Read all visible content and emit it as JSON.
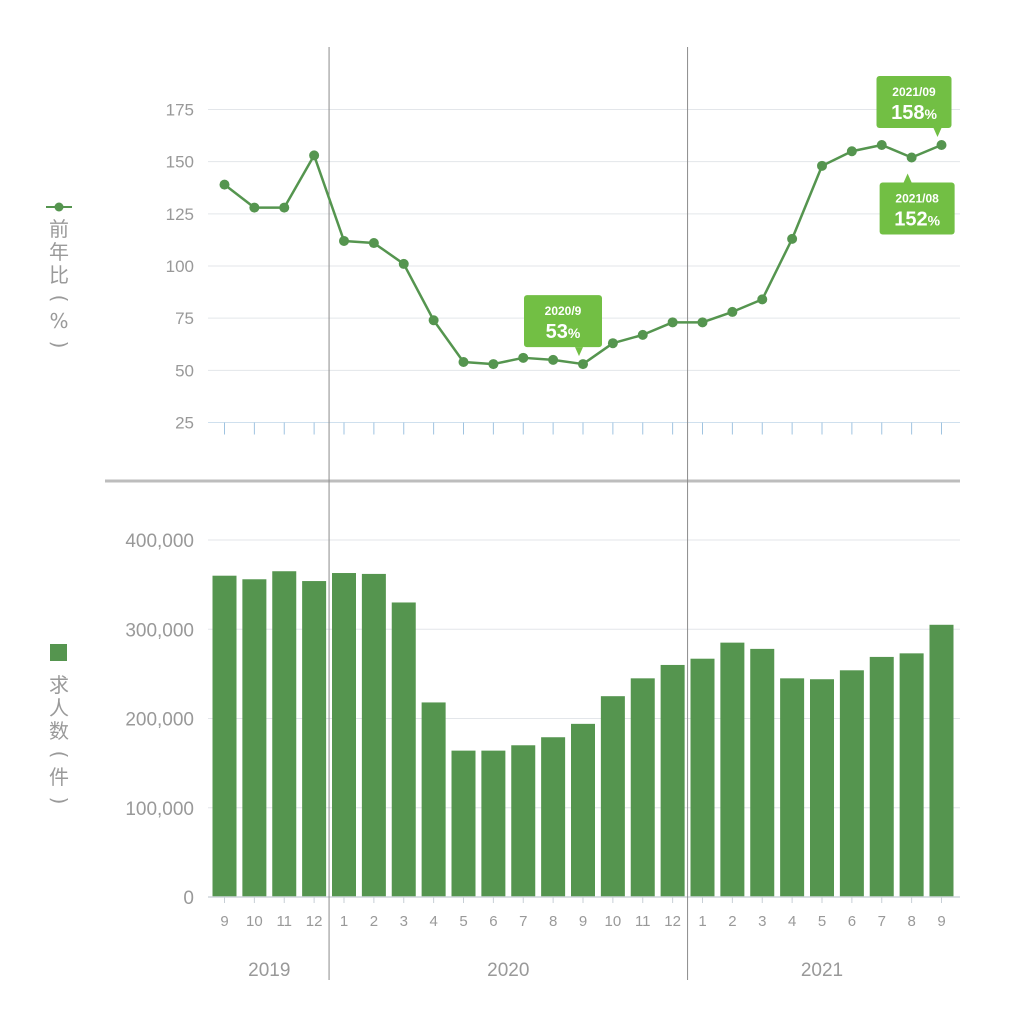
{
  "chart_data": [
    {
      "type": "line",
      "ylabel": "前年比(%)",
      "y_ticks": [
        "175",
        "150",
        "125",
        "100",
        "75",
        "50",
        "25"
      ],
      "ylim": [
        25,
        175
      ],
      "grid": true,
      "series": [
        {
          "name": "前年比(%)",
          "color": "#55954f",
          "values": [
            139,
            128,
            128,
            153,
            112,
            111,
            101,
            74,
            54,
            53,
            56,
            55,
            53,
            63,
            67,
            73,
            73,
            78,
            84,
            113,
            148,
            155,
            158,
            152,
            158
          ]
        }
      ],
      "callouts": [
        {
          "index": 12,
          "title": "2020/9",
          "value": "53",
          "unit": "%",
          "position": "above"
        },
        {
          "index": 23,
          "title": "2021/08",
          "value": "152",
          "unit": "%",
          "position": "below"
        },
        {
          "index": 24,
          "title": "2021/09",
          "value": "158",
          "unit": "%",
          "position": "above"
        }
      ],
      "callout_color": "#72bf44"
    },
    {
      "type": "bar",
      "ylabel": "求人数(件)",
      "y_ticks": [
        "400,000",
        "300,000",
        "200,000",
        "100,000",
        "0"
      ],
      "ylim": [
        0,
        400000
      ],
      "grid": true,
      "series": [
        {
          "name": "求人数(件)",
          "color": "#55954f",
          "values": [
            360000,
            356000,
            365000,
            354000,
            363000,
            362000,
            330000,
            218000,
            164000,
            164000,
            170000,
            179000,
            194000,
            225000,
            245000,
            260000,
            267000,
            285000,
            278000,
            245000,
            244000,
            254000,
            269000,
            273000,
            305000
          ]
        }
      ]
    }
  ],
  "x_axis": {
    "categories": [
      "9",
      "10",
      "11",
      "12",
      "1",
      "2",
      "3",
      "4",
      "5",
      "6",
      "7",
      "8",
      "9",
      "10",
      "11",
      "12",
      "1",
      "2",
      "3",
      "4",
      "5",
      "6",
      "7",
      "8",
      "9"
    ],
    "years": [
      {
        "label": "2019",
        "start": 0,
        "end": 3
      },
      {
        "label": "2020",
        "start": 4,
        "end": 15
      },
      {
        "label": "2021",
        "start": 16,
        "end": 24
      }
    ]
  }
}
